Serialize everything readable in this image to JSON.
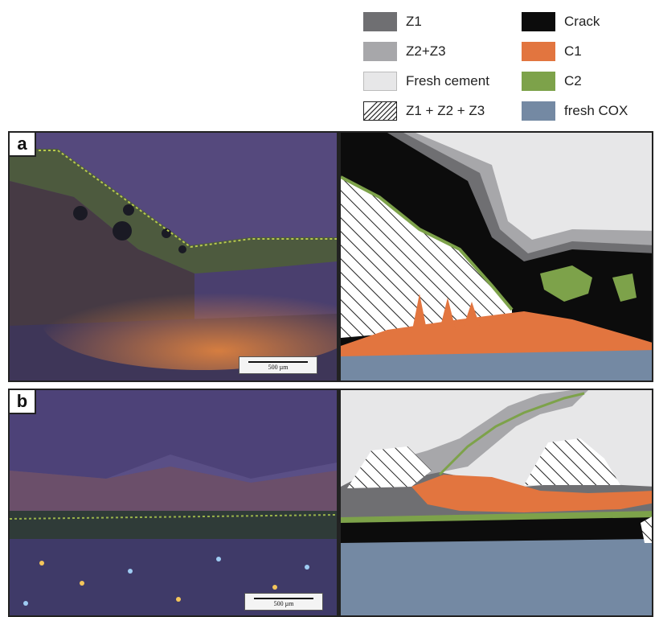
{
  "legend": {
    "items": [
      {
        "label": "Z1",
        "color": "#6f6f72",
        "hatched": false
      },
      {
        "label": "Z2+Z3",
        "color": "#a7a7aa",
        "hatched": false
      },
      {
        "label": "Fresh cement",
        "color": "#e7e7e8",
        "hatched": false
      },
      {
        "label": "Z1 + Z2 + Z3",
        "color": "#ffffff",
        "hatched": true
      },
      {
        "label": "Crack",
        "color": "#0c0c0c",
        "hatched": false
      },
      {
        "label": "C1",
        "color": "#e2753f",
        "hatched": false
      },
      {
        "label": "C2",
        "color": "#7da24a",
        "hatched": false
      },
      {
        "label": "fresh COX",
        "color": "#7489a3",
        "hatched": false
      }
    ]
  },
  "panels": [
    {
      "letter": "a",
      "scale_label": "500 µm"
    },
    {
      "letter": "b",
      "scale_label": "500 µm"
    }
  ]
}
